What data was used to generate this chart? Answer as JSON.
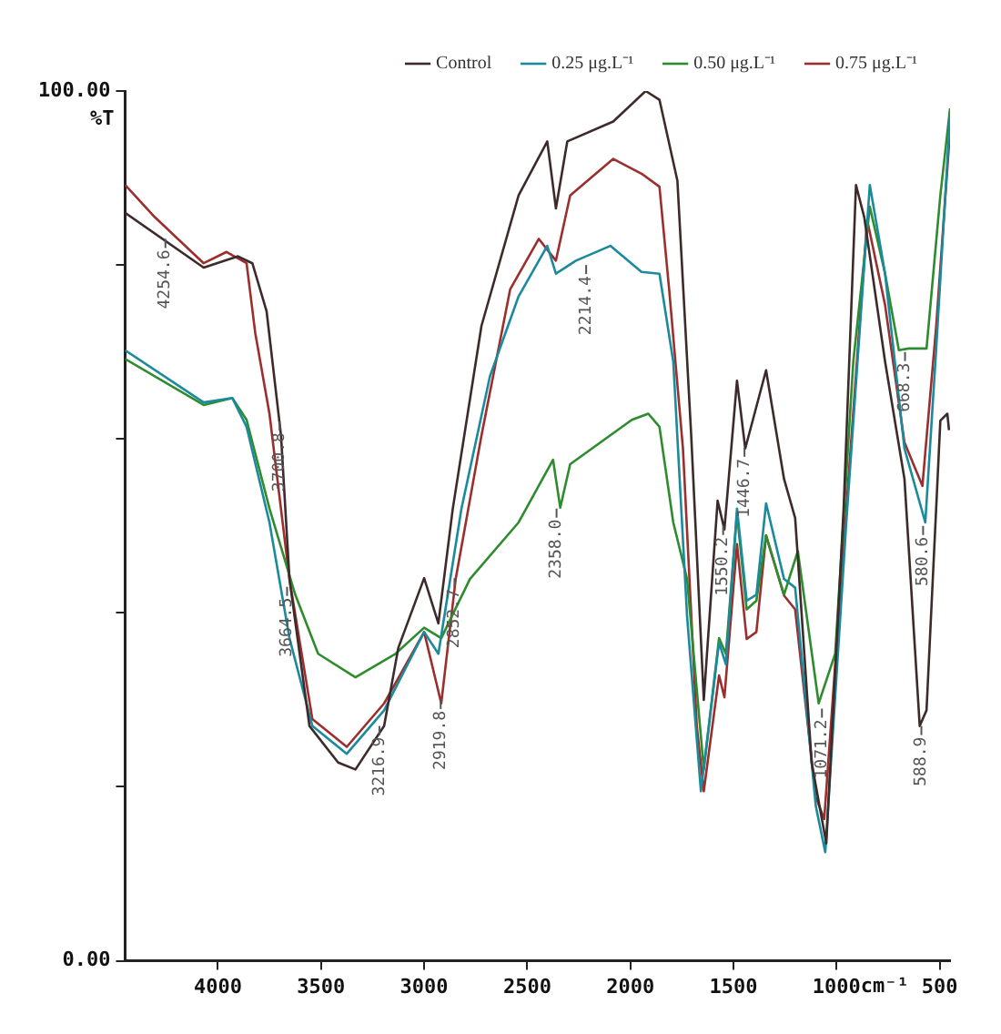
{
  "chart_data": {
    "type": "line",
    "xlabel": "cm⁻¹",
    "ylabel": "%T",
    "xlim": [
      4450,
      450
    ],
    "xticks": [
      4000,
      3500,
      3000,
      2500,
      2000,
      1500,
      1000,
      500
    ],
    "ylim": [
      0,
      100
    ],
    "yticks": [
      {
        "value": 0,
        "label": "0.00"
      },
      {
        "value": 20,
        "label": null
      },
      {
        "value": 40,
        "label": null
      },
      {
        "value": 60,
        "label": null
      },
      {
        "value": 80,
        "label": null
      },
      {
        "value": 100,
        "label": "100.00"
      }
    ],
    "grid": false,
    "legend": "top right",
    "marker": "none",
    "line_style": "solid",
    "series": [
      {
        "name": "Control",
        "color": "#3d2b2b",
        "x": [
          4450,
          4069,
          3903,
          3833,
          3764,
          3694,
          3653,
          3556,
          3417,
          3333,
          3194,
          3125,
          3000,
          2931,
          2861,
          2722,
          2542,
          2403,
          2361,
          2306,
          2083,
          1926,
          1859,
          1772,
          1705,
          1644,
          1577,
          1544,
          1483,
          1443,
          1342,
          1255,
          1201,
          1121,
          1050,
          966,
          906,
          866,
          765,
          671,
          597,
          564,
          497,
          463,
          455
        ],
        "values": [
          86,
          79.7,
          81,
          80.2,
          74.7,
          60.4,
          43.9,
          27,
          22.8,
          22,
          27,
          36,
          44,
          38.8,
          52,
          73,
          88,
          94.2,
          86.5,
          94.2,
          96.5,
          100,
          99,
          89.7,
          60.4,
          30,
          52.9,
          49.6,
          66.7,
          58.9,
          67.9,
          55.4,
          50.9,
          22.8,
          13.5,
          52,
          89.2,
          85.5,
          68.9,
          55.4,
          27,
          28.8,
          62.1,
          62.9,
          61
        ]
      },
      {
        "name": "0.25 μg.L⁻¹",
        "color": "#1b8a9c",
        "x": [
          4450,
          4069,
          3930,
          3861,
          3750,
          3653,
          3542,
          3375,
          3194,
          3000,
          2931,
          2819,
          2681,
          2542,
          2403,
          2361,
          2264,
          2097,
          1946,
          1859,
          1792,
          1725,
          1658,
          1570,
          1537,
          1483,
          1436,
          1389,
          1342,
          1255,
          1201,
          1101,
          1055,
          953,
          839,
          765,
          671,
          570,
          517,
          450
        ],
        "values": [
          70.2,
          64.2,
          64.7,
          61.4,
          50.4,
          37.1,
          27,
          23.8,
          28.8,
          37.8,
          35.3,
          52,
          67.2,
          76.4,
          82.2,
          79,
          80.5,
          82.2,
          79.2,
          79,
          68.9,
          39.6,
          19.5,
          36.6,
          34.1,
          52,
          41.4,
          42.1,
          52.6,
          43.9,
          42.9,
          17.8,
          12.5,
          50.4,
          89.2,
          79,
          58.9,
          50.4,
          70.4,
          97.2
        ]
      },
      {
        "name": "0.50 μg.L⁻¹",
        "color": "#2e8b2e",
        "x": [
          4450,
          4069,
          3930,
          3861,
          3750,
          3625,
          3514,
          3333,
          3139,
          3000,
          2917,
          2778,
          2542,
          2375,
          2340,
          2292,
          1993,
          1913,
          1859,
          1792,
          1725,
          1644,
          1570,
          1537,
          1483,
          1436,
          1389,
          1342,
          1255,
          1188,
          1087,
          1007,
          919,
          839,
          765,
          698,
          651,
          564,
          497,
          450
        ],
        "values": [
          69.2,
          63.9,
          64.7,
          62.2,
          52,
          42.1,
          35.3,
          32.6,
          35.3,
          38.3,
          37.1,
          43.9,
          50.4,
          57.6,
          52.1,
          57.1,
          62.2,
          62.9,
          61.4,
          50.4,
          43.9,
          22,
          37.1,
          35.3,
          51.4,
          40.4,
          41.4,
          48.9,
          42.1,
          47.1,
          29.6,
          35.3,
          68.9,
          86.7,
          79,
          70.2,
          70.4,
          70.4,
          88,
          98
        ]
      },
      {
        "name": "0.75 μg.L⁻¹",
        "color": "#9c2e2e",
        "x": [
          4450,
          4306,
          4069,
          3958,
          3861,
          3819,
          3750,
          3653,
          3542,
          3375,
          3194,
          3000,
          2917,
          2847,
          2722,
          2583,
          2444,
          2361,
          2292,
          2083,
          1946,
          1859,
          1812,
          1745,
          1678,
          1644,
          1570,
          1544,
          1483,
          1436,
          1389,
          1342,
          1255,
          1201,
          1101,
          1060,
          953,
          852,
          765,
          671,
          584,
          517,
          450
        ],
        "values": [
          89.2,
          85.5,
          80.2,
          81.5,
          80.2,
          72.2,
          62.9,
          43.9,
          27.8,
          24.6,
          29.6,
          37.8,
          29.6,
          43.9,
          60.4,
          77.2,
          83,
          80.5,
          88,
          92.2,
          90.5,
          89,
          77.2,
          58.9,
          27,
          19.5,
          32.8,
          30.3,
          47.9,
          37,
          37.8,
          48.9,
          42,
          40.4,
          18.8,
          16.3,
          52,
          85.2,
          75.4,
          59.6,
          54.6,
          73,
          95.5
        ]
      }
    ],
    "annotations": [
      {
        "text": "4254.6",
        "x": 4254.6,
        "y": 83
      },
      {
        "text": "3700.8",
        "x": 3700.8,
        "y": 62
      },
      {
        "text": "3664.5",
        "x": 3664.5,
        "y": 43
      },
      {
        "text": "3216.9",
        "x": 3216.9,
        "y": 27
      },
      {
        "text": "2919.8",
        "x": 2919.8,
        "y": 30
      },
      {
        "text": "2852.7",
        "x": 2852.7,
        "y": 44
      },
      {
        "text": "2358.0",
        "x": 2358,
        "y": 52
      },
      {
        "text": "2214.4",
        "x": 2214.4,
        "y": 80
      },
      {
        "text": "1550.2",
        "x": 1550.2,
        "y": 50
      },
      {
        "text": "1446.7",
        "x": 1446.7,
        "y": 59
      },
      {
        "text": "1071.2",
        "x": 1071.2,
        "y": 29
      },
      {
        "text": "668.3",
        "x": 668.3,
        "y": 70
      },
      {
        "text": "580.6",
        "x": 580.6,
        "y": 50
      },
      {
        "text": "588.9",
        "x": 588.9,
        "y": 27
      }
    ]
  }
}
